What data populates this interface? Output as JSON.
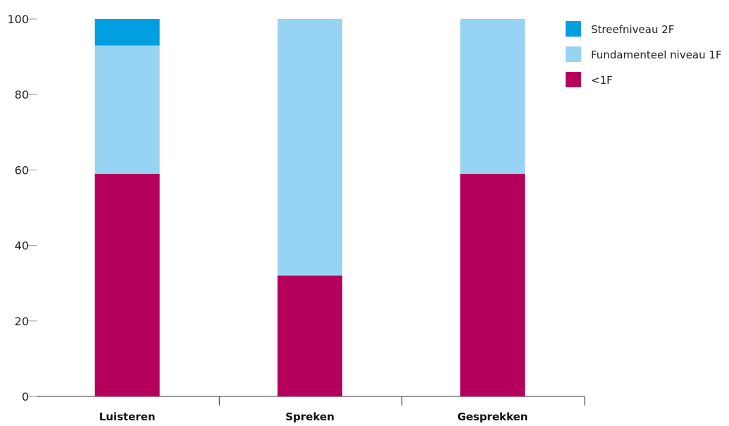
{
  "chart_data": {
    "type": "bar",
    "stacked": true,
    "categories": [
      "Luisteren",
      "Spreken",
      "Gesprekken"
    ],
    "series": [
      {
        "name": "<1F",
        "values": [
          59,
          32,
          59
        ],
        "color": "#b5005c"
      },
      {
        "name": "Fundamenteel niveau 1F",
        "values": [
          34,
          68,
          41
        ],
        "color": "#97d4f3"
      },
      {
        "name": "Streefniveau 2F",
        "values": [
          7,
          0,
          0
        ],
        "color": "#009fe0"
      }
    ],
    "legend_order": [
      "Streefniveau 2F",
      "Fundamenteel niveau 1F",
      "<1F"
    ],
    "legend_labels": [
      "Streefniveau 2F",
      "Fundamenteel niveau 1F",
      "<1F"
    ],
    "yticks": [
      "0",
      "20",
      "40",
      "60",
      "80",
      "100"
    ],
    "ylim": [
      0,
      100
    ],
    "grid": false,
    "legend_position": "top-right",
    "title": "",
    "xlabel": "",
    "ylabel": ""
  }
}
